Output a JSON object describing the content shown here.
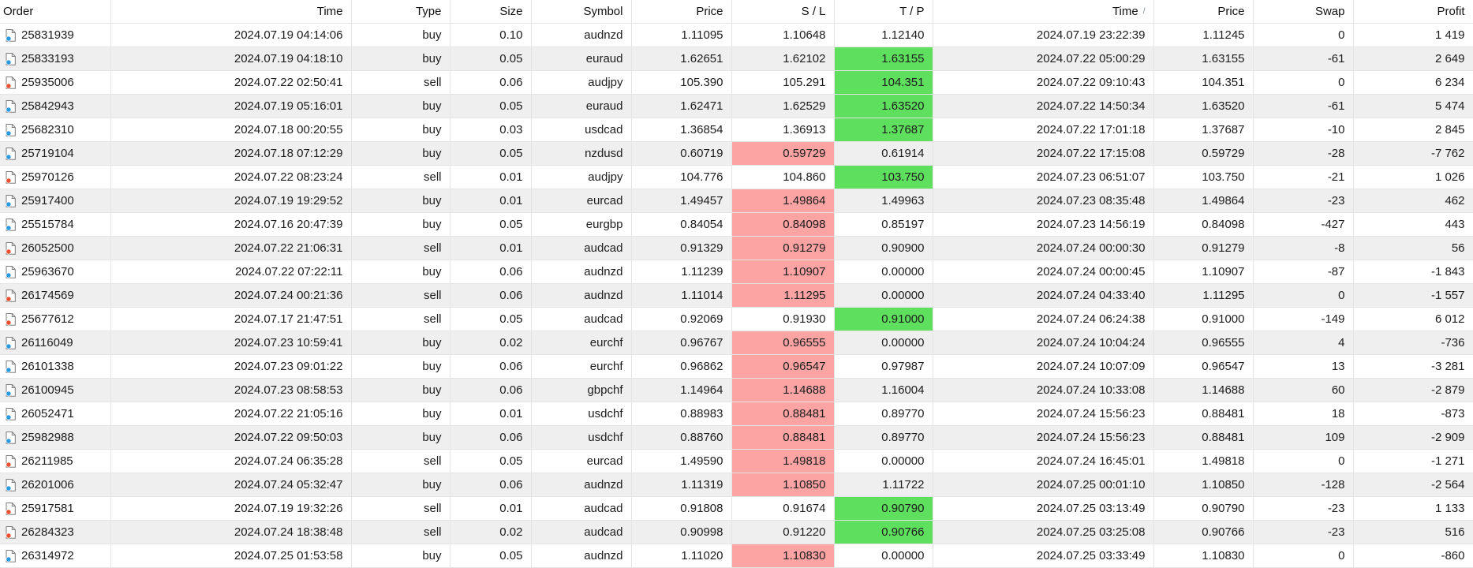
{
  "app": {
    "view_title": "Account History Orders Table"
  },
  "colors": {
    "highlight_red": "#fca3a3",
    "highlight_green": "#5ee05e",
    "row_stripe": "#efefef",
    "grid_line": "#e4e4e4",
    "buy_dot": "#2a9ae0",
    "sell_dot": "#e8502e",
    "icon_outline": "#7d7d7d"
  },
  "table": {
    "columns": [
      {
        "key": "order",
        "label": "Order",
        "align": "left",
        "sort": ""
      },
      {
        "key": "open_time",
        "label": "Time",
        "align": "right",
        "sort": ""
      },
      {
        "key": "type",
        "label": "Type",
        "align": "right",
        "sort": ""
      },
      {
        "key": "size",
        "label": "Size",
        "align": "right",
        "sort": ""
      },
      {
        "key": "symbol",
        "label": "Symbol",
        "align": "right",
        "sort": ""
      },
      {
        "key": "open_price",
        "label": "Price",
        "align": "right",
        "sort": ""
      },
      {
        "key": "sl",
        "label": "S / L",
        "align": "right",
        "sort": ""
      },
      {
        "key": "tp",
        "label": "T / P",
        "align": "right",
        "sort": ""
      },
      {
        "key": "close_time",
        "label": "Time",
        "align": "right",
        "sort": "asc"
      },
      {
        "key": "close_price",
        "label": "Price",
        "align": "right",
        "sort": ""
      },
      {
        "key": "swap",
        "label": "Swap",
        "align": "right",
        "sort": ""
      },
      {
        "key": "profit",
        "label": "Profit",
        "align": "right",
        "sort": ""
      }
    ],
    "sort_ascending_glyph": "/",
    "rows": [
      {
        "order": "25831939",
        "type": "buy",
        "open_time": "2024.07.19 04:14:06",
        "size": "0.10",
        "symbol": "audnzd",
        "open_price": "1.11095",
        "sl": "1.10648",
        "sl_hl": "",
        "tp": "1.12140",
        "tp_hl": "",
        "close_time": "2024.07.19 23:22:39",
        "close_price": "1.11245",
        "swap": "0",
        "profit": "1 419"
      },
      {
        "order": "25833193",
        "type": "buy",
        "open_time": "2024.07.19 04:18:10",
        "size": "0.05",
        "symbol": "euraud",
        "open_price": "1.62651",
        "sl": "1.62102",
        "sl_hl": "",
        "tp": "1.63155",
        "tp_hl": "green",
        "close_time": "2024.07.22 05:00:29",
        "close_price": "1.63155",
        "swap": "-61",
        "profit": "2 649"
      },
      {
        "order": "25935006",
        "type": "sell",
        "open_time": "2024.07.22 02:50:41",
        "size": "0.06",
        "symbol": "audjpy",
        "open_price": "105.390",
        "sl": "105.291",
        "sl_hl": "",
        "tp": "104.351",
        "tp_hl": "green",
        "close_time": "2024.07.22 09:10:43",
        "close_price": "104.351",
        "swap": "0",
        "profit": "6 234"
      },
      {
        "order": "25842943",
        "type": "buy",
        "open_time": "2024.07.19 05:16:01",
        "size": "0.05",
        "symbol": "euraud",
        "open_price": "1.62471",
        "sl": "1.62529",
        "sl_hl": "",
        "tp": "1.63520",
        "tp_hl": "green",
        "close_time": "2024.07.22 14:50:34",
        "close_price": "1.63520",
        "swap": "-61",
        "profit": "5 474"
      },
      {
        "order": "25682310",
        "type": "buy",
        "open_time": "2024.07.18 00:20:55",
        "size": "0.03",
        "symbol": "usdcad",
        "open_price": "1.36854",
        "sl": "1.36913",
        "sl_hl": "",
        "tp": "1.37687",
        "tp_hl": "green",
        "close_time": "2024.07.22 17:01:18",
        "close_price": "1.37687",
        "swap": "-10",
        "profit": "2 845"
      },
      {
        "order": "25719104",
        "type": "buy",
        "open_time": "2024.07.18 07:12:29",
        "size": "0.05",
        "symbol": "nzdusd",
        "open_price": "0.60719",
        "sl": "0.59729",
        "sl_hl": "red",
        "tp": "0.61914",
        "tp_hl": "",
        "close_time": "2024.07.22 17:15:08",
        "close_price": "0.59729",
        "swap": "-28",
        "profit": "-7 762"
      },
      {
        "order": "25970126",
        "type": "sell",
        "open_time": "2024.07.22 08:23:24",
        "size": "0.01",
        "symbol": "audjpy",
        "open_price": "104.776",
        "sl": "104.860",
        "sl_hl": "",
        "tp": "103.750",
        "tp_hl": "green",
        "close_time": "2024.07.23 06:51:07",
        "close_price": "103.750",
        "swap": "-21",
        "profit": "1 026"
      },
      {
        "order": "25917400",
        "type": "buy",
        "open_time": "2024.07.19 19:29:52",
        "size": "0.01",
        "symbol": "eurcad",
        "open_price": "1.49457",
        "sl": "1.49864",
        "sl_hl": "red",
        "tp": "1.49963",
        "tp_hl": "",
        "close_time": "2024.07.23 08:35:48",
        "close_price": "1.49864",
        "swap": "-23",
        "profit": "462"
      },
      {
        "order": "25515784",
        "type": "buy",
        "open_time": "2024.07.16 20:47:39",
        "size": "0.05",
        "symbol": "eurgbp",
        "open_price": "0.84054",
        "sl": "0.84098",
        "sl_hl": "red",
        "tp": "0.85197",
        "tp_hl": "",
        "close_time": "2024.07.23 14:56:19",
        "close_price": "0.84098",
        "swap": "-427",
        "profit": "443"
      },
      {
        "order": "26052500",
        "type": "sell",
        "open_time": "2024.07.22 21:06:31",
        "size": "0.01",
        "symbol": "audcad",
        "open_price": "0.91329",
        "sl": "0.91279",
        "sl_hl": "red",
        "tp": "0.90900",
        "tp_hl": "",
        "close_time": "2024.07.24 00:00:30",
        "close_price": "0.91279",
        "swap": "-8",
        "profit": "56"
      },
      {
        "order": "25963670",
        "type": "buy",
        "open_time": "2024.07.22 07:22:11",
        "size": "0.06",
        "symbol": "audnzd",
        "open_price": "1.11239",
        "sl": "1.10907",
        "sl_hl": "red",
        "tp": "0.00000",
        "tp_hl": "",
        "close_time": "2024.07.24 00:00:45",
        "close_price": "1.10907",
        "swap": "-87",
        "profit": "-1 843"
      },
      {
        "order": "26174569",
        "type": "sell",
        "open_time": "2024.07.24 00:21:36",
        "size": "0.06",
        "symbol": "audnzd",
        "open_price": "1.11014",
        "sl": "1.11295",
        "sl_hl": "red",
        "tp": "0.00000",
        "tp_hl": "",
        "close_time": "2024.07.24 04:33:40",
        "close_price": "1.11295",
        "swap": "0",
        "profit": "-1 557"
      },
      {
        "order": "25677612",
        "type": "sell",
        "open_time": "2024.07.17 21:47:51",
        "size": "0.05",
        "symbol": "audcad",
        "open_price": "0.92069",
        "sl": "0.91930",
        "sl_hl": "",
        "tp": "0.91000",
        "tp_hl": "green",
        "close_time": "2024.07.24 06:24:38",
        "close_price": "0.91000",
        "swap": "-149",
        "profit": "6 012"
      },
      {
        "order": "26116049",
        "type": "buy",
        "open_time": "2024.07.23 10:59:41",
        "size": "0.02",
        "symbol": "eurchf",
        "open_price": "0.96767",
        "sl": "0.96555",
        "sl_hl": "red",
        "tp": "0.00000",
        "tp_hl": "",
        "close_time": "2024.07.24 10:04:24",
        "close_price": "0.96555",
        "swap": "4",
        "profit": "-736"
      },
      {
        "order": "26101338",
        "type": "buy",
        "open_time": "2024.07.23 09:01:22",
        "size": "0.06",
        "symbol": "eurchf",
        "open_price": "0.96862",
        "sl": "0.96547",
        "sl_hl": "red",
        "tp": "0.97987",
        "tp_hl": "",
        "close_time": "2024.07.24 10:07:09",
        "close_price": "0.96547",
        "swap": "13",
        "profit": "-3 281"
      },
      {
        "order": "26100945",
        "type": "buy",
        "open_time": "2024.07.23 08:58:53",
        "size": "0.06",
        "symbol": "gbpchf",
        "open_price": "1.14964",
        "sl": "1.14688",
        "sl_hl": "red",
        "tp": "1.16004",
        "tp_hl": "",
        "close_time": "2024.07.24 10:33:08",
        "close_price": "1.14688",
        "swap": "60",
        "profit": "-2 879"
      },
      {
        "order": "26052471",
        "type": "buy",
        "open_time": "2024.07.22 21:05:16",
        "size": "0.01",
        "symbol": "usdchf",
        "open_price": "0.88983",
        "sl": "0.88481",
        "sl_hl": "red",
        "tp": "0.89770",
        "tp_hl": "",
        "close_time": "2024.07.24 15:56:23",
        "close_price": "0.88481",
        "swap": "18",
        "profit": "-873"
      },
      {
        "order": "25982988",
        "type": "buy",
        "open_time": "2024.07.22 09:50:03",
        "size": "0.06",
        "symbol": "usdchf",
        "open_price": "0.88760",
        "sl": "0.88481",
        "sl_hl": "red",
        "tp": "0.89770",
        "tp_hl": "",
        "close_time": "2024.07.24 15:56:23",
        "close_price": "0.88481",
        "swap": "109",
        "profit": "-2 909"
      },
      {
        "order": "26211985",
        "type": "sell",
        "open_time": "2024.07.24 06:35:28",
        "size": "0.05",
        "symbol": "eurcad",
        "open_price": "1.49590",
        "sl": "1.49818",
        "sl_hl": "red",
        "tp": "0.00000",
        "tp_hl": "",
        "close_time": "2024.07.24 16:45:01",
        "close_price": "1.49818",
        "swap": "0",
        "profit": "-1 271"
      },
      {
        "order": "26201006",
        "type": "buy",
        "open_time": "2024.07.24 05:32:47",
        "size": "0.06",
        "symbol": "audnzd",
        "open_price": "1.11319",
        "sl": "1.10850",
        "sl_hl": "red",
        "tp": "1.11722",
        "tp_hl": "",
        "close_time": "2024.07.25 00:01:10",
        "close_price": "1.10850",
        "swap": "-128",
        "profit": "-2 564"
      },
      {
        "order": "25917581",
        "type": "sell",
        "open_time": "2024.07.19 19:32:26",
        "size": "0.01",
        "symbol": "audcad",
        "open_price": "0.91808",
        "sl": "0.91674",
        "sl_hl": "",
        "tp": "0.90790",
        "tp_hl": "green",
        "close_time": "2024.07.25 03:13:49",
        "close_price": "0.90790",
        "swap": "-23",
        "profit": "1 133"
      },
      {
        "order": "26284323",
        "type": "sell",
        "open_time": "2024.07.24 18:38:48",
        "size": "0.02",
        "symbol": "audcad",
        "open_price": "0.90998",
        "sl": "0.91220",
        "sl_hl": "",
        "tp": "0.90766",
        "tp_hl": "green",
        "close_time": "2024.07.25 03:25:08",
        "close_price": "0.90766",
        "swap": "-23",
        "profit": "516"
      },
      {
        "order": "26314972",
        "type": "buy",
        "open_time": "2024.07.25 01:53:58",
        "size": "0.05",
        "symbol": "audnzd",
        "open_price": "1.11020",
        "sl": "1.10830",
        "sl_hl": "red",
        "tp": "0.00000",
        "tp_hl": "",
        "close_time": "2024.07.25 03:33:49",
        "close_price": "1.10830",
        "swap": "0",
        "profit": "-860"
      }
    ]
  }
}
